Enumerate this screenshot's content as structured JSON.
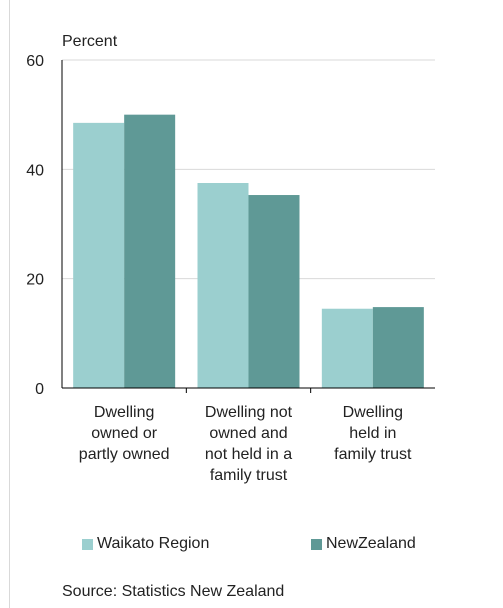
{
  "chart_data": {
    "type": "bar",
    "ylabel": "Percent",
    "ylim": [
      0,
      60
    ],
    "yticks": [
      0,
      20,
      40,
      60
    ],
    "categories": [
      [
        "Dwelling",
        "owned or",
        "partly owned"
      ],
      [
        "Dwelling not",
        "owned and",
        "not held in a",
        "family trust"
      ],
      [
        "Dwelling",
        "held in",
        "family trust"
      ]
    ],
    "series": [
      {
        "name": "Waikato Region",
        "values": [
          48.5,
          37.5,
          14.5
        ],
        "color": "#9bcfcf"
      },
      {
        "name": "NewZealand",
        "values": [
          50.0,
          35.3,
          14.8
        ],
        "color": "#5f9996"
      }
    ],
    "grid": true,
    "legend_position": "bottom",
    "source": "Source: Statistics New Zealand"
  }
}
